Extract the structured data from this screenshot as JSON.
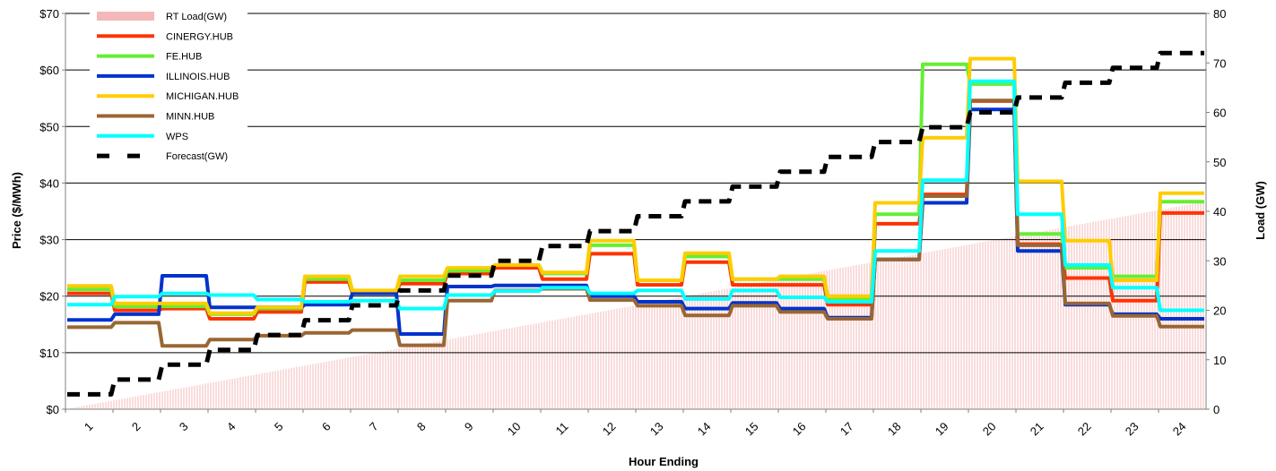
{
  "chart_data": {
    "type": "line",
    "title": "",
    "xlabel": "Hour Ending",
    "ylabel_left": "Price ($/MWh)",
    "ylabel_right": "Load (GW)",
    "categories": [
      "1",
      "2",
      "3",
      "4",
      "5",
      "6",
      "7",
      "8",
      "9",
      "10",
      "11",
      "12",
      "13",
      "14",
      "15",
      "16",
      "17",
      "18",
      "19",
      "20",
      "21",
      "22",
      "23",
      "24"
    ],
    "y_left_ticks": [
      "$0",
      "$10",
      "$20",
      "$30",
      "$40",
      "$50",
      "$60",
      "$70"
    ],
    "y_left_range": [
      0,
      70
    ],
    "y_right_ticks": [
      "0",
      "10",
      "20",
      "30",
      "40",
      "50",
      "60",
      "70",
      "80"
    ],
    "y_right_range": [
      0,
      80
    ],
    "gridlines": "horizontal",
    "legend_position": "top-left",
    "series": [
      {
        "name": "RT Load(GW)",
        "type": "area",
        "axis": "right",
        "color": "#f4b8b8",
        "start": [
          0.5,
          0
        ],
        "end": [
          24.5,
          42
        ]
      },
      {
        "name": "CINERGY.HUB",
        "axis": "left",
        "color": "#ff3300",
        "values": [
          20.5,
          17.5,
          17.8,
          16,
          17.2,
          22.5,
          20.5,
          22.2,
          24,
          25,
          23,
          27.5,
          22,
          26,
          22,
          22,
          18.5,
          32.8,
          38,
          54.5,
          29.2,
          23.2,
          19.2,
          34.7
        ]
      },
      {
        "name": "FE.HUB",
        "axis": "left",
        "color": "#66ee33",
        "values": [
          21.2,
          18.2,
          18.2,
          16.8,
          17.8,
          23,
          20.8,
          22.8,
          24.5,
          25.5,
          24,
          29,
          22.8,
          27,
          23,
          23,
          19.5,
          34.5,
          61,
          57.5,
          31,
          25,
          23.5,
          36.7
        ]
      },
      {
        "name": "ILLINOIS.HUB",
        "axis": "left",
        "color": "#0033cc",
        "values": [
          15.8,
          16.8,
          23.6,
          18,
          18,
          18.5,
          20.5,
          13.3,
          21.7,
          21.9,
          21.9,
          20,
          19,
          17.8,
          18.8,
          17.8,
          16.2,
          26.5,
          36.5,
          53,
          28,
          18.5,
          16.8,
          16
        ]
      },
      {
        "name": "MICHIGAN.HUB",
        "axis": "left",
        "color": "#ffcc00",
        "values": [
          21.8,
          18.7,
          18.7,
          17,
          18,
          23.5,
          21,
          23.5,
          25,
          25.5,
          24.2,
          29.8,
          22.8,
          27.6,
          23,
          23.5,
          20,
          36.5,
          48,
          62,
          40.3,
          29.8,
          22.8,
          38.2
        ]
      },
      {
        "name": "MINN.HUB",
        "axis": "left",
        "color": "#996633",
        "values": [
          14.5,
          15.3,
          11.2,
          12.3,
          13,
          13.5,
          14,
          11.3,
          19.2,
          21,
          21.3,
          19.3,
          18.3,
          16.6,
          18.3,
          17.2,
          16,
          26.5,
          37.7,
          54.6,
          29,
          18.7,
          16.5,
          14.6
        ]
      },
      {
        "name": "WPS",
        "axis": "left",
        "color": "#00ffff",
        "values": [
          18.5,
          19.9,
          20.5,
          20.2,
          19.4,
          19,
          19.2,
          17.8,
          20.2,
          20.9,
          21.5,
          20.5,
          21,
          19.5,
          21,
          19.8,
          19,
          28,
          40.5,
          58,
          34.5,
          25.5,
          21.5,
          17.5
        ]
      },
      {
        "name": "Forecast(GW)",
        "axis": "right",
        "color": "#000000",
        "dashed": true,
        "values": [
          3,
          6,
          9,
          12,
          15,
          18,
          21,
          24,
          27,
          30,
          33,
          36,
          39,
          42,
          45,
          48,
          51,
          54,
          57,
          60,
          63,
          66,
          69,
          72
        ]
      }
    ]
  }
}
